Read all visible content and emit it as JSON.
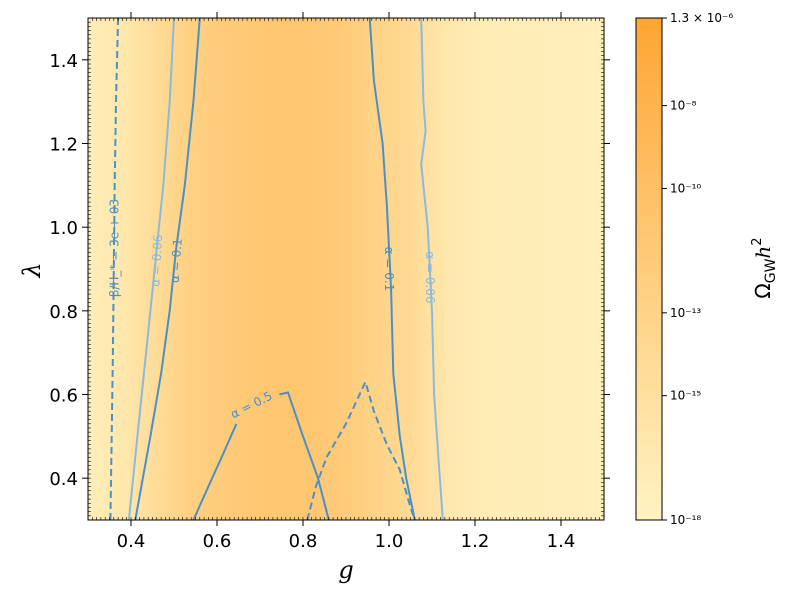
{
  "chart_data": {
    "type": "heatmap",
    "xlabel": "g",
    "ylabel": "λ",
    "xlim": [
      0.3,
      1.5
    ],
    "ylim": [
      0.3,
      1.5
    ],
    "x_ticks": [
      0.4,
      0.6,
      0.8,
      1.0,
      1.2,
      1.4
    ],
    "x_tick_labels": [
      "0.4",
      "0.6",
      "0.8",
      "1.0",
      "1.2",
      "1.4"
    ],
    "y_ticks": [
      0.4,
      0.6,
      0.8,
      1.0,
      1.2,
      1.4
    ],
    "y_tick_labels": [
      "0.4",
      "0.6",
      "0.8",
      "1.0",
      "1.2",
      "1.4"
    ],
    "grid": false,
    "colorbar": {
      "label": "Ω_GW h²",
      "label_main": "Ω",
      "label_sub": "GW",
      "label_h": "h",
      "label_sup": "2",
      "scale": "log",
      "min": 1e-18,
      "max": 1.3e-06,
      "color_low": "#fff3c2",
      "color_high": "#ffa534",
      "ticks": [
        {
          "value": 1.3e-06,
          "label": "1.3 × 10⁻⁶"
        },
        {
          "value": 1e-08,
          "label": "10⁻⁸"
        },
        {
          "value": 1e-10,
          "label": "10⁻¹⁰"
        },
        {
          "value": 1e-13,
          "label": "10⁻¹³"
        },
        {
          "value": 1e-15,
          "label": "10⁻¹⁵"
        },
        {
          "value": 1e-18,
          "label": "10⁻¹⁸"
        }
      ]
    },
    "heatmap_profile": {
      "description": "colormap intensity (0-1) vs g, roughly constant in λ",
      "g": [
        0.3,
        0.35,
        0.4,
        0.45,
        0.5,
        0.55,
        0.6,
        0.65,
        0.7,
        0.75,
        0.8,
        0.85,
        0.9,
        0.95,
        1.0,
        1.05,
        1.1,
        1.15,
        1.2,
        1.3,
        1.4,
        1.5
      ],
      "intensity": [
        0.08,
        0.12,
        0.18,
        0.28,
        0.38,
        0.46,
        0.5,
        0.53,
        0.56,
        0.58,
        0.58,
        0.55,
        0.5,
        0.44,
        0.38,
        0.32,
        0.22,
        0.14,
        0.1,
        0.07,
        0.06,
        0.05
      ]
    },
    "contours": [
      {
        "label": "β/H_* = 3e + 03",
        "quantity": "beta_over_H",
        "color": "#4a90c8",
        "dashed": true,
        "points": [
          [
            0.37,
            1.5
          ],
          [
            0.365,
            1.3
          ],
          [
            0.362,
            1.1
          ],
          [
            0.36,
            0.9
          ],
          [
            0.358,
            0.7
          ],
          [
            0.355,
            0.5
          ],
          [
            0.352,
            0.3
          ]
        ],
        "label_pos": [
          0.362,
          0.95
        ],
        "label_angle": -90
      },
      {
        "label": "α = 0.06",
        "quantity": "alpha",
        "color": "#8bbadc",
        "dashed": false,
        "points": [
          [
            0.5,
            1.5
          ],
          [
            0.49,
            1.3
          ],
          [
            0.475,
            1.1
          ],
          [
            0.46,
            0.95
          ],
          [
            0.445,
            0.8
          ],
          [
            0.43,
            0.65
          ],
          [
            0.415,
            0.5
          ],
          [
            0.395,
            0.3
          ]
        ],
        "label_pos": [
          0.46,
          0.92
        ],
        "label_angle": -87
      },
      {
        "label": "α = 0.1",
        "quantity": "alpha",
        "color": "#4a90c8",
        "dashed": false,
        "points": [
          [
            0.56,
            1.5
          ],
          [
            0.545,
            1.3
          ],
          [
            0.525,
            1.1
          ],
          [
            0.505,
            0.95
          ],
          [
            0.49,
            0.8
          ],
          [
            0.47,
            0.65
          ],
          [
            0.445,
            0.5
          ],
          [
            0.41,
            0.3
          ]
        ],
        "label_pos": [
          0.505,
          0.92
        ],
        "label_angle": -86
      },
      {
        "label": "α = 0.5",
        "quantity": "alpha",
        "color": "#4a90c8",
        "dashed": false,
        "points": [
          [
            0.545,
            0.3
          ],
          [
            0.58,
            0.38
          ],
          [
            0.615,
            0.46
          ],
          [
            0.645,
            0.53
          ]
        ],
        "label_pos": [
          0.68,
          0.575
        ],
        "label_angle": -27,
        "segment2": [
          [
            0.745,
            0.6
          ],
          [
            0.765,
            0.605
          ],
          [
            0.8,
            0.5
          ],
          [
            0.835,
            0.4
          ],
          [
            0.86,
            0.3
          ]
        ]
      },
      {
        "label": "",
        "quantity": "beta_over_H",
        "color": "#4a90c8",
        "dashed": true,
        "points": [
          [
            0.81,
            0.3
          ],
          [
            0.83,
            0.38
          ],
          [
            0.855,
            0.45
          ],
          [
            0.9,
            0.53
          ],
          [
            0.945,
            0.63
          ],
          [
            0.965,
            0.56
          ],
          [
            0.995,
            0.48
          ],
          [
            1.025,
            0.42
          ],
          [
            1.05,
            0.33
          ],
          [
            1.06,
            0.3
          ]
        ]
      },
      {
        "label": "α = 0.1",
        "quantity": "alpha",
        "color": "#4a90c8",
        "dashed": false,
        "points": [
          [
            0.955,
            1.5
          ],
          [
            0.965,
            1.35
          ],
          [
            0.985,
            1.2
          ],
          [
            0.995,
            1.05
          ],
          [
            1.005,
            0.85
          ],
          [
            1.01,
            0.65
          ],
          [
            1.025,
            0.5
          ],
          [
            1.04,
            0.4
          ],
          [
            1.06,
            0.3
          ]
        ],
        "label_pos": [
          1.0,
          0.9
        ],
        "label_angle": 90
      },
      {
        "label": "α = 0.06",
        "quantity": "alpha",
        "color": "#8bbadc",
        "dashed": false,
        "points": [
          [
            1.075,
            1.5
          ],
          [
            1.08,
            1.3
          ],
          [
            1.085,
            1.23
          ],
          [
            1.075,
            1.15
          ],
          [
            1.09,
            1.0
          ],
          [
            1.1,
            0.8
          ],
          [
            1.105,
            0.6
          ],
          [
            1.115,
            0.45
          ],
          [
            1.125,
            0.3
          ]
        ],
        "label_pos": [
          1.095,
          0.88
        ],
        "label_angle": 90
      }
    ]
  }
}
